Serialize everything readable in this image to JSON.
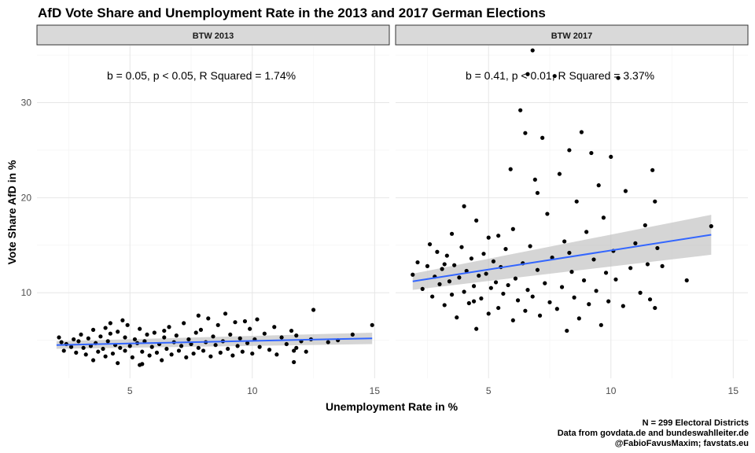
{
  "chart_data": {
    "type": "scatter",
    "title": "AfD Vote Share and Unemployment Rate in the 2013 and 2017 German Elections",
    "xlabel": "Unemployment Rate in %",
    "ylabel": "Vote Share AfD in %",
    "xlim": [
      1.2,
      15.6
    ],
    "ylim": [
      1.0,
      36.0
    ],
    "x_ticks": [
      5,
      10,
      15
    ],
    "y_ticks": [
      10,
      20,
      30
    ],
    "grid": true,
    "legend": "none",
    "caption": [
      "N = 299 Electoral Districts",
      "Data from govdata.de and bundeswahlleiter.de",
      "@FabioFavusMaxim; favstats.eu"
    ],
    "panels": [
      {
        "name": "BTW 2013",
        "annotation": "b = 0.05, p < 0.05, R Squared = 1.74%",
        "fit": {
          "x0": 2.0,
          "y0": 4.5,
          "x1": 14.9,
          "y1": 5.2,
          "band_lo0": 4.1,
          "band_hi0": 4.9,
          "band_lo1": 4.6,
          "band_hi1": 5.8
        },
        "points": [
          [
            2.1,
            5.3
          ],
          [
            2.2,
            4.8
          ],
          [
            2.3,
            3.9
          ],
          [
            2.4,
            4.6
          ],
          [
            2.6,
            4.3
          ],
          [
            2.7,
            5.1
          ],
          [
            2.8,
            3.7
          ],
          [
            2.9,
            4.9
          ],
          [
            3.0,
            5.6
          ],
          [
            3.1,
            4.2
          ],
          [
            3.2,
            3.5
          ],
          [
            3.3,
            5.2
          ],
          [
            3.4,
            4.4
          ],
          [
            3.5,
            2.9
          ],
          [
            3.5,
            6.1
          ],
          [
            3.6,
            4.7
          ],
          [
            3.7,
            3.8
          ],
          [
            3.8,
            5.4
          ],
          [
            3.9,
            4.1
          ],
          [
            4.0,
            6.3
          ],
          [
            4.0,
            3.3
          ],
          [
            4.1,
            4.9
          ],
          [
            4.2,
            5.7
          ],
          [
            4.3,
            3.6
          ],
          [
            4.4,
            4.5
          ],
          [
            4.5,
            2.6
          ],
          [
            4.5,
            5.9
          ],
          [
            4.6,
            4.2
          ],
          [
            4.7,
            7.1
          ],
          [
            4.8,
            3.9
          ],
          [
            4.8,
            5.3
          ],
          [
            4.9,
            6.6
          ],
          [
            5.0,
            4.4
          ],
          [
            5.1,
            3.2
          ],
          [
            5.2,
            5.1
          ],
          [
            5.3,
            4.7
          ],
          [
            5.4,
            2.4
          ],
          [
            5.4,
            6.2
          ],
          [
            5.5,
            3.8
          ],
          [
            5.6,
            4.9
          ],
          [
            5.7,
            5.6
          ],
          [
            5.8,
            3.4
          ],
          [
            5.9,
            4.3
          ],
          [
            6.0,
            5.8
          ],
          [
            6.1,
            3.7
          ],
          [
            6.2,
            4.6
          ],
          [
            6.3,
            2.9
          ],
          [
            6.4,
            5.3
          ],
          [
            6.5,
            4.1
          ],
          [
            6.6,
            6.4
          ],
          [
            6.7,
            3.5
          ],
          [
            6.8,
            4.8
          ],
          [
            6.9,
            5.5
          ],
          [
            7.0,
            3.9
          ],
          [
            7.1,
            4.4
          ],
          [
            7.2,
            6.8
          ],
          [
            7.3,
            3.2
          ],
          [
            7.4,
            5.1
          ],
          [
            7.5,
            4.6
          ],
          [
            7.6,
            3.6
          ],
          [
            7.7,
            5.8
          ],
          [
            7.8,
            4.2
          ],
          [
            7.9,
            6.1
          ],
          [
            8.0,
            3.9
          ],
          [
            8.1,
            4.8
          ],
          [
            8.2,
            7.3
          ],
          [
            8.3,
            3.3
          ],
          [
            8.4,
            5.4
          ],
          [
            8.5,
            4.5
          ],
          [
            8.6,
            6.6
          ],
          [
            8.7,
            3.7
          ],
          [
            8.8,
            4.9
          ],
          [
            8.9,
            7.8
          ],
          [
            9.0,
            4.1
          ],
          [
            9.1,
            5.6
          ],
          [
            9.2,
            3.4
          ],
          [
            9.3,
            6.9
          ],
          [
            9.4,
            4.4
          ],
          [
            9.5,
            5.2
          ],
          [
            9.6,
            3.8
          ],
          [
            9.8,
            4.7
          ],
          [
            9.9,
            6.2
          ],
          [
            10.0,
            3.6
          ],
          [
            10.1,
            5.1
          ],
          [
            10.2,
            7.2
          ],
          [
            10.3,
            4.3
          ],
          [
            10.5,
            5.7
          ],
          [
            10.7,
            4.0
          ],
          [
            10.9,
            6.4
          ],
          [
            11.0,
            3.5
          ],
          [
            11.2,
            5.3
          ],
          [
            11.4,
            4.6
          ],
          [
            11.6,
            6.0
          ],
          [
            11.7,
            3.9
          ],
          [
            11.7,
            2.7
          ],
          [
            11.8,
            5.5
          ],
          [
            11.8,
            4.2
          ],
          [
            12.0,
            4.9
          ],
          [
            12.2,
            3.8
          ],
          [
            12.5,
            8.2
          ],
          [
            12.4,
            5.1
          ],
          [
            13.1,
            4.8
          ],
          [
            13.5,
            5.0
          ],
          [
            14.1,
            5.6
          ],
          [
            14.9,
            6.6
          ],
          [
            4.2,
            6.8
          ],
          [
            6.4,
            6.0
          ],
          [
            7.8,
            7.6
          ],
          [
            9.7,
            7.0
          ],
          [
            5.5,
            2.5
          ]
        ]
      },
      {
        "name": "BTW 2017",
        "annotation": "b = 0.41, p < 0.01, R Squared = 3.37%",
        "fit": {
          "x0": 1.9,
          "y0": 11.2,
          "x1": 14.1,
          "y1": 16.1,
          "band_lo0": 10.3,
          "band_hi0": 12.0,
          "band_lo1": 14.0,
          "band_hi1": 18.2
        },
        "points": [
          [
            1.9,
            11.9
          ],
          [
            2.1,
            13.2
          ],
          [
            2.3,
            10.4
          ],
          [
            2.5,
            12.8
          ],
          [
            2.6,
            15.1
          ],
          [
            2.7,
            9.6
          ],
          [
            2.8,
            11.7
          ],
          [
            2.9,
            14.3
          ],
          [
            3.0,
            10.9
          ],
          [
            3.1,
            12.5
          ],
          [
            3.2,
            8.7
          ],
          [
            3.3,
            13.9
          ],
          [
            3.4,
            11.2
          ],
          [
            3.5,
            9.8
          ],
          [
            3.5,
            16.2
          ],
          [
            3.6,
            12.9
          ],
          [
            3.7,
            7.4
          ],
          [
            3.8,
            11.6
          ],
          [
            3.9,
            14.8
          ],
          [
            4.0,
            10.1
          ],
          [
            4.0,
            19.1
          ],
          [
            4.1,
            12.3
          ],
          [
            4.2,
            8.9
          ],
          [
            4.3,
            13.6
          ],
          [
            4.4,
            10.7
          ],
          [
            4.5,
            6.2
          ],
          [
            4.5,
            17.6
          ],
          [
            4.6,
            11.8
          ],
          [
            4.7,
            9.4
          ],
          [
            4.8,
            14.1
          ],
          [
            4.9,
            12.0
          ],
          [
            5.0,
            7.8
          ],
          [
            5.0,
            15.8
          ],
          [
            5.1,
            10.5
          ],
          [
            5.2,
            13.3
          ],
          [
            5.3,
            11.1
          ],
          [
            5.4,
            8.4
          ],
          [
            5.5,
            12.7
          ],
          [
            5.6,
            9.9
          ],
          [
            5.7,
            14.6
          ],
          [
            5.8,
            10.8
          ],
          [
            5.9,
            23.0
          ],
          [
            6.0,
            7.1
          ],
          [
            6.0,
            16.7
          ],
          [
            6.1,
            11.5
          ],
          [
            6.2,
            9.2
          ],
          [
            6.3,
            29.2
          ],
          [
            6.4,
            13.1
          ],
          [
            6.5,
            8.1
          ],
          [
            6.6,
            10.3
          ],
          [
            6.6,
            33.0
          ],
          [
            6.7,
            14.9
          ],
          [
            6.8,
            35.5
          ],
          [
            6.8,
            9.6
          ],
          [
            6.9,
            21.9
          ],
          [
            7.0,
            12.4
          ],
          [
            7.1,
            7.6
          ],
          [
            7.2,
            26.3
          ],
          [
            7.3,
            11.0
          ],
          [
            7.4,
            18.3
          ],
          [
            7.5,
            9.0
          ],
          [
            7.6,
            13.7
          ],
          [
            7.7,
            32.8
          ],
          [
            7.8,
            8.3
          ],
          [
            7.9,
            22.5
          ],
          [
            8.0,
            10.6
          ],
          [
            8.1,
            15.4
          ],
          [
            8.2,
            6.0
          ],
          [
            8.3,
            25.0
          ],
          [
            8.4,
            12.2
          ],
          [
            8.5,
            9.5
          ],
          [
            8.6,
            19.6
          ],
          [
            8.7,
            7.3
          ],
          [
            8.8,
            26.9
          ],
          [
            8.9,
            11.3
          ],
          [
            9.0,
            16.4
          ],
          [
            9.1,
            8.8
          ],
          [
            9.2,
            24.7
          ],
          [
            9.3,
            13.5
          ],
          [
            9.4,
            10.2
          ],
          [
            9.5,
            21.3
          ],
          [
            9.6,
            6.6
          ],
          [
            9.7,
            17.9
          ],
          [
            9.8,
            12.1
          ],
          [
            9.9,
            9.1
          ],
          [
            10.0,
            24.3
          ],
          [
            10.1,
            14.4
          ],
          [
            10.2,
            11.4
          ],
          [
            10.3,
            32.6
          ],
          [
            10.5,
            8.6
          ],
          [
            10.6,
            20.7
          ],
          [
            10.8,
            12.6
          ],
          [
            11.0,
            15.2
          ],
          [
            11.2,
            10.0
          ],
          [
            11.4,
            17.1
          ],
          [
            11.5,
            13.0
          ],
          [
            11.6,
            9.3
          ],
          [
            11.7,
            22.9
          ],
          [
            11.8,
            19.6
          ],
          [
            11.8,
            8.4
          ],
          [
            11.9,
            14.7
          ],
          [
            12.1,
            12.8
          ],
          [
            13.1,
            11.3
          ],
          [
            14.1,
            17.0
          ],
          [
            6.5,
            26.8
          ],
          [
            7.0,
            20.5
          ],
          [
            5.4,
            16.0
          ],
          [
            4.4,
            9.1
          ],
          [
            3.2,
            13.0
          ],
          [
            8.3,
            14.2
          ]
        ]
      }
    ]
  }
}
